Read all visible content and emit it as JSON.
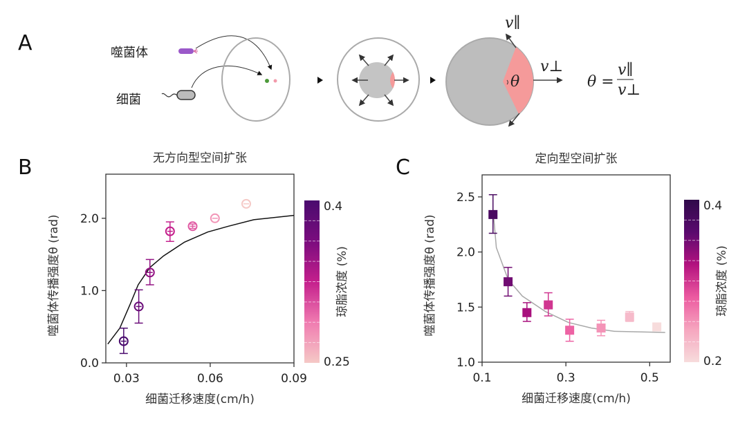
{
  "panels": {
    "A": {
      "label": "A",
      "phage_label": "噬菌体",
      "bacteria_label": "细菌",
      "v_parallel": "v∥",
      "v_perp": "v⊥",
      "theta": "θ",
      "formula_lhs": "θ =",
      "formula_num": "v∥",
      "formula_den": "v⊥",
      "colors": {
        "phage": "#9b59c9",
        "bacteria": "#b5b5b5",
        "wedge": "#f59a9a",
        "colony": "#bdbdbd"
      }
    },
    "B": {
      "label": "B"
    },
    "C": {
      "label": "C"
    }
  },
  "chart_data": [
    {
      "type": "scatter",
      "title": "无方向型空间扩张",
      "xlabel": "细菌迁移速度(cm/h)",
      "ylabel": "噬菌体传播强度θ (rad)",
      "xlim": [
        0.0226,
        0.09
      ],
      "ylim": [
        0,
        2.61
      ],
      "xticks": [
        "0.03",
        "0.06",
        "0.09"
      ],
      "xtick_values": [
        0.03,
        0.06,
        0.09
      ],
      "yticks": [
        "0.0",
        "1.0",
        "2.0"
      ],
      "ytick_values": [
        0,
        1,
        2
      ],
      "marker": "open-circle",
      "points": [
        {
          "x": 0.029,
          "y": 0.3,
          "lo": 0.13,
          "hi": 0.48,
          "c": 0.4
        },
        {
          "x": 0.0344,
          "y": 0.78,
          "lo": 0.55,
          "hi": 1.01,
          "c": 0.375
        },
        {
          "x": 0.0384,
          "y": 1.25,
          "lo": 1.08,
          "hi": 1.43,
          "c": 0.35
        },
        {
          "x": 0.0456,
          "y": 1.82,
          "lo": 1.68,
          "hi": 1.95,
          "c": 0.325
        },
        {
          "x": 0.0537,
          "y": 1.89,
          "lo": 1.86,
          "hi": 1.92,
          "c": 0.3
        },
        {
          "x": 0.0617,
          "y": 2.0,
          "lo": 1.98,
          "hi": 2.02,
          "c": 0.275
        },
        {
          "x": 0.0729,
          "y": 2.2,
          "lo": 2.18,
          "hi": 2.22,
          "c": 0.25
        }
      ],
      "model_curve": {
        "color": "#111111",
        "x": [
          0.0233,
          0.0276,
          0.0313,
          0.0342,
          0.0384,
          0.0433,
          0.0508,
          0.0591,
          0.0665,
          0.0756,
          0.09
        ],
        "y": [
          0.26,
          0.48,
          0.81,
          1.08,
          1.32,
          1.48,
          1.67,
          1.81,
          1.89,
          1.98,
          2.04
        ]
      },
      "colorbar": {
        "label": "琼脂浓度 (%)",
        "min": 0.25,
        "max": 0.4,
        "min_label": "0.25",
        "max_label": "0.4",
        "colors": [
          "#f5c9c6",
          "#f07bb0",
          "#c41f8c",
          "#7a0c7e",
          "#4a0b6e"
        ]
      }
    },
    {
      "type": "scatter",
      "title": "定向型空间扩张",
      "xlabel": "细菌迁移速度(cm/h)",
      "ylabel": "噬菌体传播强度θ (rad)",
      "xlim": [
        0.1,
        0.549
      ],
      "ylim": [
        1.0,
        2.7
      ],
      "xticks": [
        "0.1",
        "0.3",
        "0.5"
      ],
      "xtick_values": [
        0.1,
        0.3,
        0.5
      ],
      "yticks": [
        "1.0",
        "1.5",
        "2.0",
        "2.5"
      ],
      "ytick_values": [
        1.0,
        1.5,
        2.0,
        2.5
      ],
      "marker": "filled-square",
      "points": [
        {
          "x": 0.126,
          "y": 2.34,
          "lo": 2.17,
          "hi": 2.52,
          "c": 0.375
        },
        {
          "x": 0.162,
          "y": 1.73,
          "lo": 1.6,
          "hi": 1.86,
          "c": 0.35
        },
        {
          "x": 0.207,
          "y": 1.45,
          "lo": 1.37,
          "hi": 1.54,
          "c": 0.325
        },
        {
          "x": 0.258,
          "y": 1.52,
          "lo": 1.42,
          "hi": 1.63,
          "c": 0.3
        },
        {
          "x": 0.309,
          "y": 1.29,
          "lo": 1.19,
          "hi": 1.39,
          "c": 0.275
        },
        {
          "x": 0.384,
          "y": 1.31,
          "lo": 1.24,
          "hi": 1.38,
          "c": 0.25
        },
        {
          "x": 0.452,
          "y": 1.41,
          "lo": 1.37,
          "hi": 1.46,
          "c": 0.225
        },
        {
          "x": 0.517,
          "y": 1.32,
          "lo": 1.32,
          "hi": 1.32,
          "c": 0.2
        }
      ],
      "model_curve": {
        "color": "#a8a8a8",
        "x": [
          0.128,
          0.134,
          0.162,
          0.196,
          0.251,
          0.306,
          0.361,
          0.416,
          0.537
        ],
        "y": [
          2.3,
          2.04,
          1.75,
          1.6,
          1.46,
          1.36,
          1.31,
          1.28,
          1.27
        ]
      },
      "colorbar": {
        "label": "琼脂浓度 (%)",
        "min": 0.2,
        "max": 0.4,
        "min_label": "0.2",
        "max_label": "0.4",
        "colors": [
          "#f7dcdc",
          "#f6a6bf",
          "#ec5aa0",
          "#b3127f",
          "#5a0a6e",
          "#300a4a"
        ]
      }
    }
  ]
}
